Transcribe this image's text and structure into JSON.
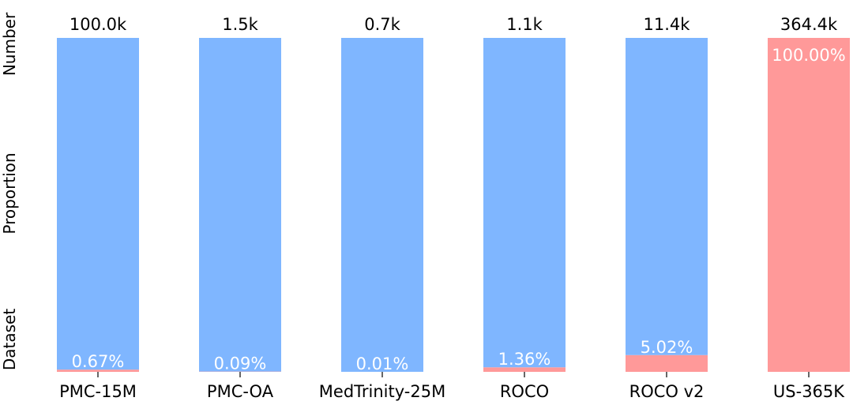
{
  "chart_data": {
    "type": "bar",
    "stacked": true,
    "row_labels": {
      "top": "Number",
      "middle": "Proportion",
      "bottom": "Dataset"
    },
    "categories": [
      "PMC-15M",
      "PMC-OA",
      "MedTrinity-25M",
      "ROCO",
      "ROCO v2",
      "US-365K"
    ],
    "numbers": [
      "100.0k",
      "1.5k",
      "0.7k",
      "1.1k",
      "11.4k",
      "364.4k"
    ],
    "proportion_labels": [
      "0.67%",
      "0.09%",
      "0.01%",
      "1.36%",
      "5.02%",
      "100.00%"
    ],
    "series": [
      {
        "values": [
          0.67,
          0.09,
          0.01,
          1.36,
          5.02,
          100.0
        ],
        "color": "#ff9999"
      },
      {
        "values": [
          99.33,
          99.91,
          99.99,
          98.64,
          94.98,
          0.0
        ],
        "color": "#7fb6ff"
      }
    ],
    "ylim": [
      0,
      100
    ]
  }
}
